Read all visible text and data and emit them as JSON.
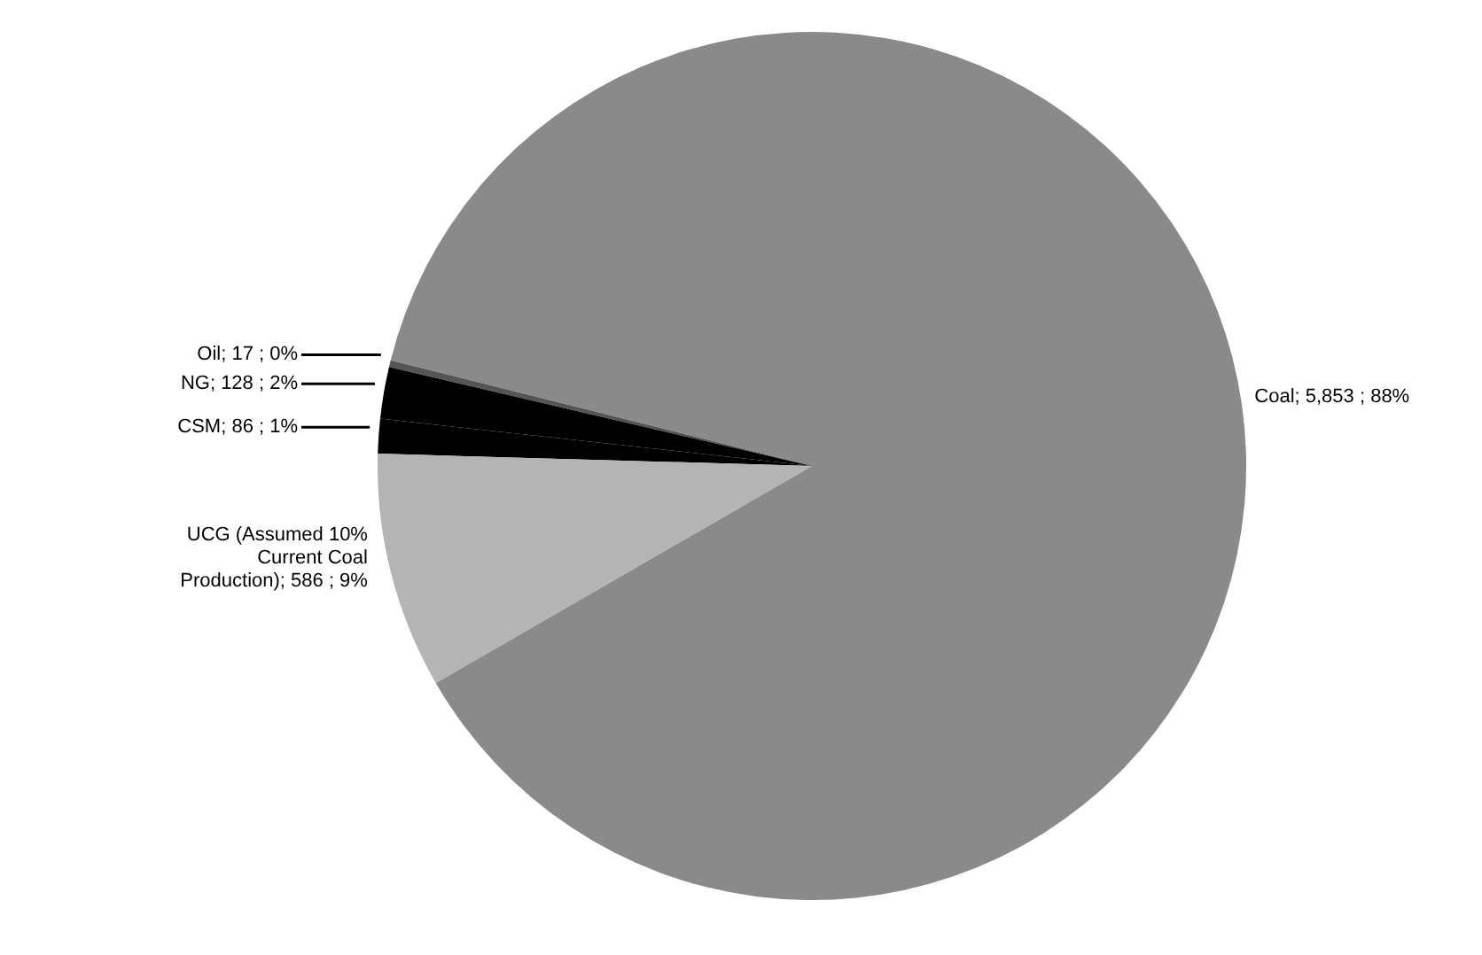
{
  "chart_data": {
    "type": "pie",
    "categories": [
      "Coal",
      "Oil",
      "NG",
      "CSM",
      "UCG (Assumed 10% Current Coal Production)"
    ],
    "values": [
      5853,
      17,
      128,
      86,
      586
    ],
    "value_labels": [
      "5,853 ; 88%",
      "17 ; 0%",
      "128 ; 2%",
      "86 ; 1%",
      "586 ; 9%"
    ],
    "colors": [
      "#8a8a8a",
      "#555555",
      "#000000",
      "#000000",
      "#b4b4b4"
    ],
    "legend": false
  }
}
